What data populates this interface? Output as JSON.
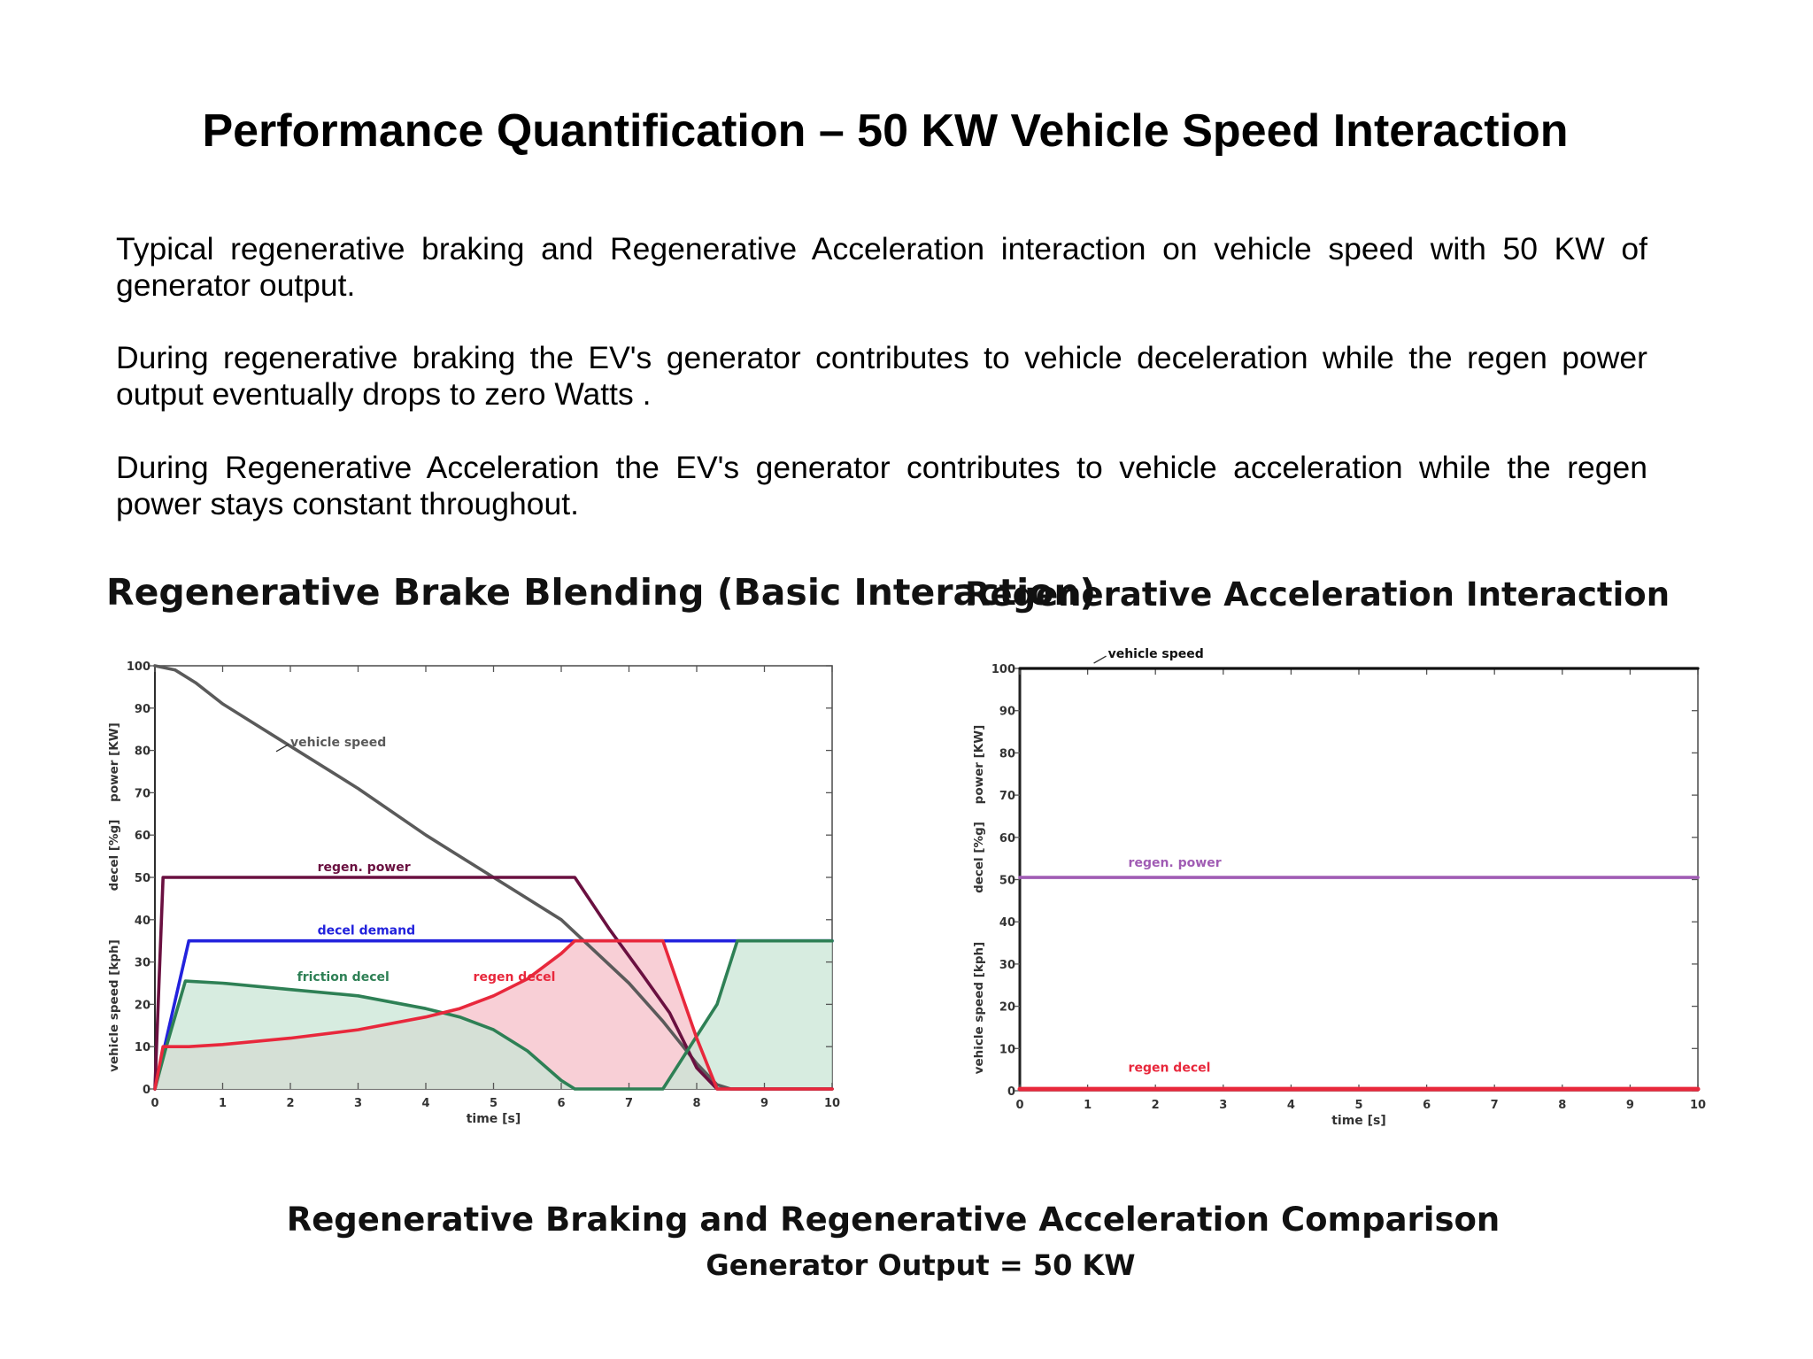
{
  "page": {
    "title": "Performance Quantification – 50 KW Vehicle Speed Interaction",
    "paragraphs": [
      "Typical regenerative braking and Regenerative Acceleration interaction on vehicle speed with 50 KW of generator output.",
      "During regenerative braking the EV's generator contributes to vehicle deceleration while the regen power output eventually drops to zero Watts .",
      "During Regenerative Acceleration the EV's generator contributes to vehicle acceleration while the regen power stays constant throughout."
    ],
    "caption": "Regenerative Braking and Regenerative Acceleration Comparison",
    "subcaption": "Generator Output = 50 KW"
  },
  "chart_data": [
    {
      "type": "line",
      "title": "Regenerative Brake Blending (Basic Interaction)",
      "xlabel": "time [s]",
      "ylabel_parts": [
        "vehicle speed [kph]",
        "decel [%g]",
        "power [KW]"
      ],
      "xlim": [
        0,
        10
      ],
      "ylim": [
        0,
        100
      ],
      "xticks": [
        0,
        1,
        2,
        3,
        4,
        5,
        6,
        7,
        8,
        9,
        10
      ],
      "yticks": [
        0,
        10,
        20,
        30,
        40,
        50,
        60,
        70,
        80,
        90,
        100
      ],
      "grid": false,
      "series": [
        {
          "name": "vehicle speed",
          "color": "#5a5a5a",
          "points": [
            [
              0,
              100
            ],
            [
              0.3,
              99
            ],
            [
              0.6,
              96
            ],
            [
              1,
              91
            ],
            [
              2,
              81
            ],
            [
              3,
              71
            ],
            [
              4,
              60
            ],
            [
              5,
              50
            ],
            [
              6,
              40
            ],
            [
              7,
              25
            ],
            [
              7.5,
              16
            ],
            [
              8,
              6
            ],
            [
              8.3,
              1
            ],
            [
              8.5,
              0
            ],
            [
              10,
              0
            ]
          ]
        },
        {
          "name": "regen. power",
          "color": "#6a1040",
          "points": [
            [
              0,
              0
            ],
            [
              0.12,
              50
            ],
            [
              6.2,
              50
            ],
            [
              6.7,
              38
            ],
            [
              7.2,
              27
            ],
            [
              7.6,
              18
            ],
            [
              8,
              5
            ],
            [
              8.3,
              0
            ],
            [
              10,
              0
            ]
          ]
        },
        {
          "name": "decel demand",
          "color": "#2222dd",
          "points": [
            [
              0,
              0
            ],
            [
              0.5,
              35
            ],
            [
              10,
              35
            ]
          ]
        },
        {
          "name": "friction decel",
          "color": "#2e8055",
          "points": [
            [
              0,
              0
            ],
            [
              0.15,
              9
            ],
            [
              0.45,
              25.5
            ],
            [
              1,
              25
            ],
            [
              2,
              23.5
            ],
            [
              3,
              22
            ],
            [
              4,
              19
            ],
            [
              4.5,
              17
            ],
            [
              5,
              14
            ],
            [
              5.5,
              9
            ],
            [
              6,
              2
            ],
            [
              6.2,
              0
            ],
            [
              7.5,
              0
            ],
            [
              8.3,
              20
            ],
            [
              8.6,
              35
            ],
            [
              10,
              35
            ]
          ]
        },
        {
          "name": "regen decel",
          "color": "#e8283c",
          "points": [
            [
              0,
              0
            ],
            [
              0.12,
              10
            ],
            [
              0.5,
              10
            ],
            [
              1,
              10.5
            ],
            [
              2,
              12
            ],
            [
              3,
              14
            ],
            [
              4,
              17
            ],
            [
              4.5,
              19
            ],
            [
              5,
              22
            ],
            [
              5.5,
              26
            ],
            [
              6,
              32
            ],
            [
              6.2,
              35
            ],
            [
              7.5,
              35
            ],
            [
              8,
              12
            ],
            [
              8.3,
              0
            ],
            [
              10,
              0
            ]
          ]
        }
      ],
      "annotations": [
        {
          "text": "vehicle speed",
          "at": [
            2,
            81
          ]
        },
        {
          "text": "regen. power",
          "at": [
            2.4,
            51.5
          ]
        },
        {
          "text": "decel demand",
          "at": [
            2.4,
            36.5
          ]
        },
        {
          "text": "friction decel",
          "at": [
            2.1,
            25.5
          ]
        },
        {
          "text": "regen decel",
          "at": [
            4.7,
            25.5
          ]
        }
      ],
      "colors": {
        "regen_fill": "#f7c7cf",
        "friction_fill": "#c9e6d6"
      }
    },
    {
      "type": "line",
      "title": "Regenerative Acceleration Interaction",
      "xlabel": "time [s]",
      "ylabel_parts": [
        "vehicle speed [kph]",
        "decel [%g]",
        "power [KW]"
      ],
      "xlim": [
        0,
        10
      ],
      "ylim": [
        0,
        100
      ],
      "xticks": [
        0,
        1,
        2,
        3,
        4,
        5,
        6,
        7,
        8,
        9,
        10
      ],
      "yticks": [
        0,
        10,
        20,
        30,
        40,
        50,
        60,
        70,
        80,
        90,
        100
      ],
      "grid": false,
      "series": [
        {
          "name": "vehicle speed",
          "color": "#111111",
          "points": [
            [
              0,
              100
            ],
            [
              10,
              100
            ]
          ]
        },
        {
          "name": "regen. power",
          "color": "#a05cb4",
          "points": [
            [
              0,
              50.5
            ],
            [
              10,
              50.5
            ]
          ]
        },
        {
          "name": "regen decel",
          "color": "#e8283c",
          "points": [
            [
              0,
              0.4
            ],
            [
              10,
              0.4
            ]
          ]
        }
      ],
      "annotations": [
        {
          "text": "vehicle speed",
          "at": [
            1.3,
            102.5
          ]
        },
        {
          "text": "regen. power",
          "at": [
            1.6,
            53
          ]
        },
        {
          "text": "regen decel",
          "at": [
            1.6,
            4.5
          ]
        }
      ]
    }
  ]
}
